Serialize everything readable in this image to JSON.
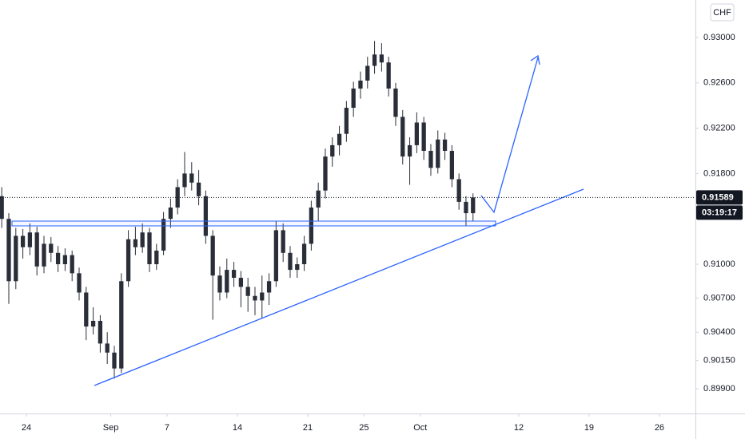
{
  "chart_data": {
    "type": "candlestick",
    "currency": "CHF",
    "up_color": "#2a2e39",
    "down_color": "#2a2e39",
    "x": [
      -1.75,
      -1.25,
      -0.75,
      -0.25,
      0.25,
      0.75,
      1.25,
      1.75,
      2.25,
      2.75,
      3.25,
      3.75,
      4.25,
      4.75,
      5.25,
      5.75,
      6.25,
      6.75,
      7.25,
      7.75,
      8.25,
      8.75,
      9.25,
      9.75,
      10.25,
      10.75,
      11.25,
      11.75,
      12.25,
      12.75,
      13.25,
      13.75,
      14.25,
      14.75,
      15.25,
      15.75,
      16.25,
      16.75,
      17.25,
      17.75,
      18.25,
      18.75,
      19.25,
      19.75,
      20.25,
      20.75,
      21.25,
      21.75,
      22.25,
      22.75,
      23.25,
      23.75,
      24.25,
      24.75,
      25.25,
      25.75,
      26.25,
      26.75,
      27.25,
      27.75,
      28.25,
      28.75,
      29.25,
      29.75,
      30.25,
      30.75,
      31.25,
      31.75
    ],
    "open": [
      0.916,
      0.914,
      0.9085,
      0.9125,
      0.9115,
      0.9128,
      0.9098,
      0.9118,
      0.911,
      0.91,
      0.9108,
      0.9092,
      0.9075,
      0.9045,
      0.905,
      0.903,
      0.9022,
      0.9008,
      0.9085,
      0.9122,
      0.9115,
      0.9128,
      0.91,
      0.9112,
      0.914,
      0.915,
      0.9168,
      0.918,
      0.9172,
      0.916,
      0.9125,
      0.909,
      0.9075,
      0.9095,
      0.9088,
      0.908,
      0.9072,
      0.9068,
      0.9075,
      0.9085,
      0.913,
      0.911,
      0.9095,
      0.91,
      0.9118,
      0.915,
      0.9165,
      0.9195,
      0.9205,
      0.9215,
      0.9238,
      0.9255,
      0.9262,
      0.9275,
      0.9285,
      0.9278,
      0.9255,
      0.923,
      0.9195,
      0.9205,
      0.9225,
      0.92,
      0.9185,
      0.921,
      0.92,
      0.9175,
      0.9155,
      0.9145
    ],
    "high": [
      0.9168,
      0.9145,
      0.9132,
      0.9131,
      0.9136,
      0.9133,
      0.9125,
      0.9124,
      0.9116,
      0.9114,
      0.9112,
      0.9097,
      0.908,
      0.9062,
      0.9055,
      0.904,
      0.9028,
      0.9092,
      0.913,
      0.9133,
      0.9136,
      0.9132,
      0.9118,
      0.9146,
      0.9158,
      0.9175,
      0.9199,
      0.919,
      0.9183,
      0.9165,
      0.913,
      0.9098,
      0.9105,
      0.9102,
      0.9094,
      0.9088,
      0.908,
      0.909,
      0.9092,
      0.9138,
      0.9136,
      0.9116,
      0.9106,
      0.9125,
      0.9156,
      0.9172,
      0.9202,
      0.9212,
      0.9222,
      0.9244,
      0.9261,
      0.927,
      0.9283,
      0.9297,
      0.9295,
      0.9283,
      0.926,
      0.9236,
      0.9212,
      0.9234,
      0.923,
      0.9206,
      0.9218,
      0.9216,
      0.9205,
      0.918,
      0.916,
      0.91625
    ],
    "low": [
      0.9132,
      0.9065,
      0.9078,
      0.9105,
      0.9108,
      0.909,
      0.9092,
      0.9102,
      0.9093,
      0.9094,
      0.9085,
      0.9068,
      0.9033,
      0.9038,
      0.9022,
      0.9012,
      0.8999,
      0.9004,
      0.908,
      0.9108,
      0.911,
      0.9093,
      0.9095,
      0.9108,
      0.9132,
      0.9144,
      0.916,
      0.9165,
      0.9152,
      0.9118,
      0.9051,
      0.9068,
      0.907,
      0.908,
      0.9062,
      0.9058,
      0.9055,
      0.9052,
      0.9064,
      0.908,
      0.9102,
      0.9088,
      0.9088,
      0.9094,
      0.9112,
      0.9138,
      0.9158,
      0.9186,
      0.9196,
      0.9208,
      0.923,
      0.9246,
      0.9255,
      0.9268,
      0.927,
      0.9248,
      0.9222,
      0.9188,
      0.917,
      0.9198,
      0.9192,
      0.9178,
      0.918,
      0.9192,
      0.9168,
      0.9148,
      0.9134,
      0.9138
    ],
    "close": [
      0.914,
      0.9085,
      0.9125,
      0.9115,
      0.9128,
      0.9098,
      0.9118,
      0.911,
      0.91,
      0.9108,
      0.9092,
      0.9075,
      0.9045,
      0.905,
      0.903,
      0.9022,
      0.9008,
      0.9085,
      0.9122,
      0.9115,
      0.9128,
      0.91,
      0.9112,
      0.914,
      0.915,
      0.9168,
      0.918,
      0.9172,
      0.916,
      0.9125,
      0.909,
      0.9075,
      0.9095,
      0.9088,
      0.908,
      0.9072,
      0.9068,
      0.9075,
      0.9085,
      0.913,
      0.911,
      0.9095,
      0.91,
      0.9118,
      0.915,
      0.9165,
      0.9195,
      0.9205,
      0.9215,
      0.9238,
      0.9255,
      0.9262,
      0.9275,
      0.9285,
      0.9278,
      0.9255,
      0.923,
      0.9195,
      0.9205,
      0.9225,
      0.92,
      0.9185,
      0.921,
      0.92,
      0.9175,
      0.9155,
      0.9145,
      0.91589
    ],
    "xlim": [
      -1.875,
      47.56
    ],
    "xticks": [
      {
        "value": 0,
        "label": "24"
      },
      {
        "value": 6,
        "label": "Sep"
      },
      {
        "value": 10,
        "label": "7"
      },
      {
        "value": 15,
        "label": "14"
      },
      {
        "value": 20,
        "label": "21"
      },
      {
        "value": 24,
        "label": "25"
      },
      {
        "value": 28,
        "label": "Oct"
      },
      {
        "value": 35,
        "label": "12"
      },
      {
        "value": 40,
        "label": "19"
      },
      {
        "value": 45,
        "label": "26"
      }
    ],
    "ylim": [
      0.89683,
      0.93331
    ],
    "yticks": [
      {
        "value": 0.93,
        "label": "0.93000"
      },
      {
        "value": 0.926,
        "label": "0.92600"
      },
      {
        "value": 0.922,
        "label": "0.92200"
      },
      {
        "value": 0.918,
        "label": "0.91800"
      },
      {
        "value": 0.91,
        "label": "0.91000"
      },
      {
        "value": 0.907,
        "label": "0.90700"
      },
      {
        "value": 0.904,
        "label": "0.90400"
      },
      {
        "value": 0.9015,
        "label": "0.90150"
      },
      {
        "value": 0.899,
        "label": "0.89900"
      }
    ],
    "last_price": 0.91589,
    "countdown": "03:19:17"
  }
}
